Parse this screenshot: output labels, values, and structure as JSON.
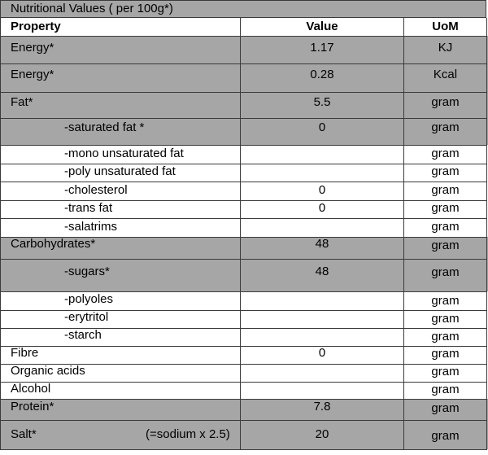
{
  "title": "Nutritional Values ( per 100g*)",
  "headers": {
    "property": "Property",
    "value": "Value",
    "uom": "UoM"
  },
  "rows": [
    {
      "property": "Energy*",
      "value": "1.17",
      "uom": "KJ"
    },
    {
      "property": "Energy*",
      "value": "0.28",
      "uom": "Kcal"
    },
    {
      "property": "Fat*",
      "value": "5.5",
      "uom": "gram"
    },
    {
      "property": "-saturated fat *",
      "value": "0",
      "uom": "gram"
    },
    {
      "property": "-mono unsaturated fat",
      "value": "",
      "uom": "gram"
    },
    {
      "property": "-poly unsaturated fat",
      "value": "",
      "uom": "gram"
    },
    {
      "property": "-cholesterol",
      "value": "0",
      "uom": "gram"
    },
    {
      "property": "-trans fat",
      "value": "0",
      "uom": "gram"
    },
    {
      "property": "-salatrims",
      "value": "",
      "uom": "gram"
    },
    {
      "property": "Carbohydrates*",
      "value": "48",
      "uom": "gram"
    },
    {
      "property": "-sugars*",
      "value": "48",
      "uom": "gram"
    },
    {
      "property": "-polyoles",
      "value": "",
      "uom": "gram"
    },
    {
      "property": "-erytritol",
      "value": "",
      "uom": "gram"
    },
    {
      "property": "-starch",
      "value": "",
      "uom": "gram"
    },
    {
      "property": "Fibre",
      "value": "0",
      "uom": "gram"
    },
    {
      "property": "Organic acids",
      "value": "",
      "uom": "gram"
    },
    {
      "property": "Alcohol",
      "value": "",
      "uom": "gram"
    },
    {
      "property": "Protein*",
      "value": "7.8",
      "uom": "gram"
    },
    {
      "property": "Salt*",
      "note": "(=sodium x 2.5)",
      "value": "20",
      "uom": "gram"
    }
  ],
  "colors": {
    "shade": "#a6a6a6",
    "border": "#3a3a3a"
  }
}
